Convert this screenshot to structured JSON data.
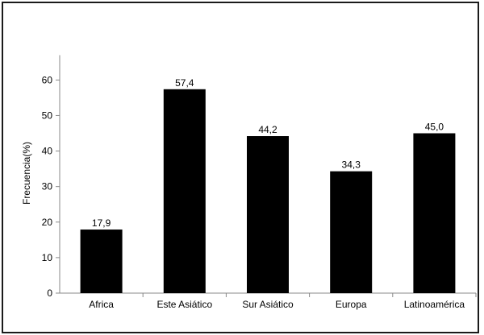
{
  "chart_data": {
    "type": "bar",
    "categories": [
      "Africa",
      "Este Asiático",
      "Sur Asiático",
      "Europa",
      "Latinoamérica"
    ],
    "values": [
      17.9,
      57.4,
      44.2,
      34.3,
      45.0
    ],
    "value_labels": [
      "17,9",
      "57,4",
      "44,2",
      "34,3",
      "45,0"
    ],
    "title": "",
    "xlabel": "",
    "ylabel": "Frecuencia(%)",
    "ylim": [
      0,
      67
    ],
    "yticks": [
      0,
      10,
      20,
      30,
      40,
      50,
      60
    ],
    "grid": false,
    "bar_color": "#000000"
  }
}
